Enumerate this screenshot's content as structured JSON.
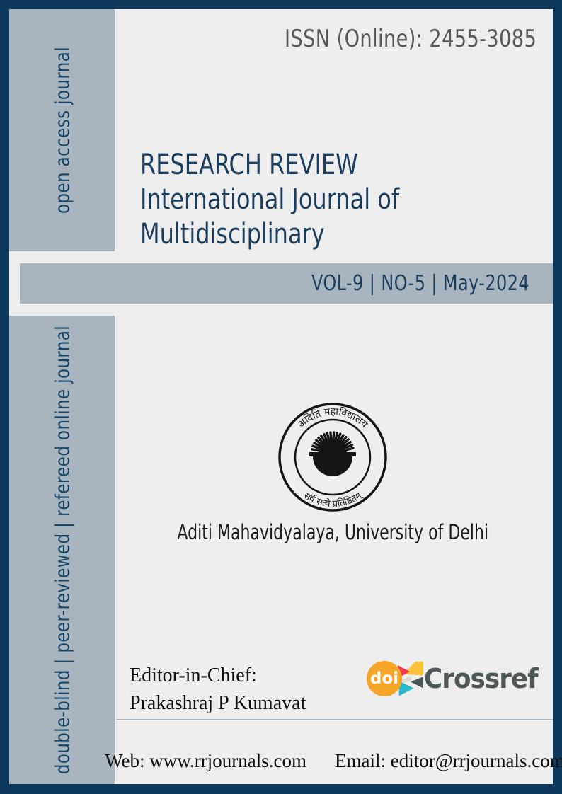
{
  "colors": {
    "navy": "#0d3a5c",
    "steel": "#a9b5be",
    "page_bg": "#eeeeee",
    "title_navy": "#1c3e5e",
    "sidebar_text": "#16476b",
    "issn_gray": "#58585a",
    "crossref_gray": "#4f5858",
    "doi_orange": "#f5a628",
    "spark_yellow": "#fac33b",
    "spark_red": "#ee3b4e",
    "spark_teal": "#29b7cb",
    "spark_light": "#dcdcd4",
    "spark_dark": "#4a5454"
  },
  "header": {
    "issn": "ISSN (Online): 2455-3085"
  },
  "sidebar": {
    "top_label": "open access journal",
    "bottom_label": "double-blind | peer-reviewed | refereed online journal"
  },
  "masthead": {
    "line1": "RESEARCH REVIEW",
    "line2": "International Journal of",
    "line3": "Multidisciplinary"
  },
  "issue_banner": {
    "label": "VOL-9 | NO-5 | May-2024"
  },
  "institution": {
    "seal_top_text": "अदिति महाविद्यालय",
    "seal_bottom_text": "सर्व सत्ये प्रतिष्ठितम्",
    "name": "Aditi Mahavidyalaya, University of Delhi"
  },
  "editor": {
    "label": "Editor-in-Chief:",
    "name": "Prakashraj P Kumavat"
  },
  "crossref": {
    "doi_label": "doi",
    "wordmark": "Crossref"
  },
  "footer": {
    "web": "Web: www.rrjournals.com",
    "email": "Email: editor@rrjournals.com"
  }
}
